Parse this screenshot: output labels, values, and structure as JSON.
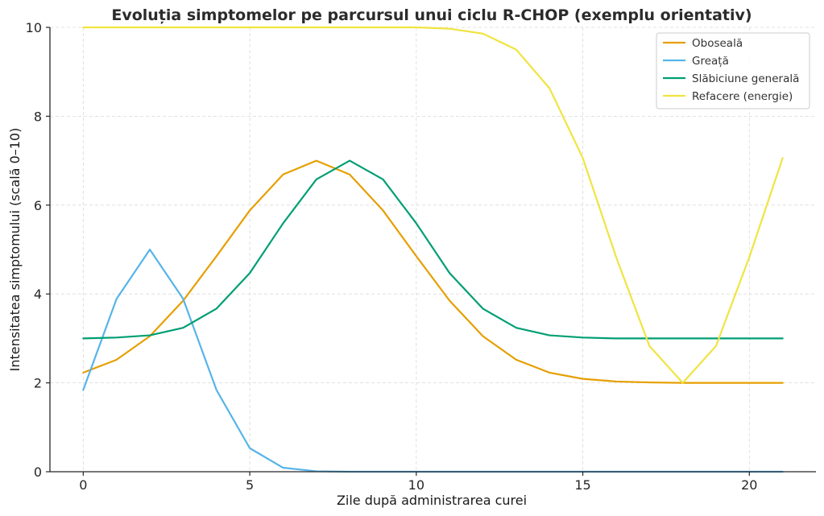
{
  "chart_data": {
    "type": "line",
    "title": "Evoluția simptomelor pe parcursul unui ciclu R-CHOP (exemplu orientativ)",
    "xlabel": "Zile după administrarea curei",
    "ylabel": "Intensitatea simptomului (scală 0–10)",
    "xlim": [
      -1,
      22
    ],
    "ylim": [
      0,
      10
    ],
    "xticks": [
      0,
      5,
      10,
      15,
      20
    ],
    "yticks": [
      0,
      2,
      4,
      6,
      8,
      10
    ],
    "grid": true,
    "legend_position": "top-right",
    "x": [
      0,
      1,
      2,
      3,
      4,
      5,
      6,
      7,
      8,
      9,
      10,
      11,
      12,
      13,
      14,
      15,
      16,
      17,
      18,
      19,
      20,
      21
    ],
    "series": [
      {
        "name": "Oboseală",
        "color": "#E69F00",
        "values": [
          2.23,
          2.52,
          3.05,
          3.85,
          4.85,
          5.88,
          6.69,
          7.0,
          6.69,
          5.88,
          4.85,
          3.85,
          3.05,
          2.52,
          2.23,
          2.09,
          2.03,
          2.01,
          2.0,
          2.0,
          2.0,
          2.0
        ]
      },
      {
        "name": "Greață",
        "color": "#56B4E9",
        "values": [
          1.84,
          3.89,
          5.0,
          3.89,
          1.84,
          0.53,
          0.09,
          0.01,
          0.0,
          0.0,
          0.0,
          0.0,
          0.0,
          0.0,
          0.0,
          0.0,
          0.0,
          0.0,
          0.0,
          0.0,
          0.0,
          0.0
        ]
      },
      {
        "name": "Slăbiciune generală",
        "color": "#009E73",
        "values": [
          3.0,
          3.02,
          3.07,
          3.24,
          3.67,
          4.47,
          5.59,
          6.58,
          7.0,
          6.58,
          5.59,
          4.47,
          3.67,
          3.24,
          3.07,
          3.02,
          3.0,
          3.0,
          3.0,
          3.0,
          3.0,
          3.0
        ]
      },
      {
        "name": "Refacere (energie)",
        "color": "#F0E442",
        "values": [
          10.0,
          10.0,
          10.0,
          10.0,
          10.0,
          10.0,
          10.0,
          10.0,
          10.0,
          10.0,
          10.0,
          9.97,
          9.86,
          9.5,
          8.63,
          7.06,
          4.83,
          2.83,
          2.0,
          2.83,
          4.83,
          7.06
        ]
      }
    ]
  }
}
